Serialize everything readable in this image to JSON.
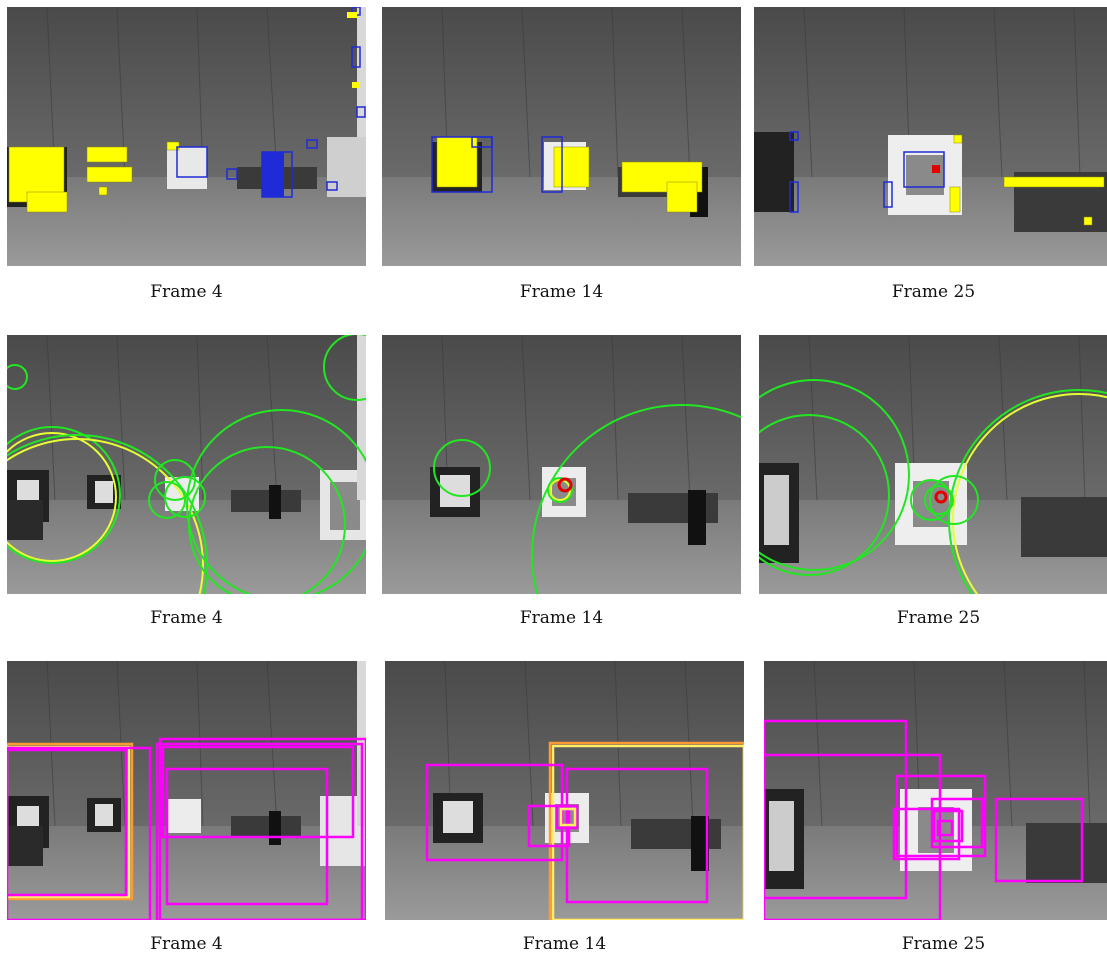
{
  "figure": {
    "captions": [
      [
        "Frame 4",
        "Frame 14",
        "Frame 25"
      ],
      [
        "Frame 4",
        "Frame 14",
        "Frame 25"
      ],
      [
        "Frame 4",
        "Frame 14",
        "Frame 25"
      ]
    ],
    "colors": {
      "feature_yellow": "#ffff00",
      "feature_blue": "#1f2bd6",
      "circle_green": "#22e622",
      "circle_yellow": "#e6ff33",
      "highlight_red": "#e00000",
      "box_magenta": "#ff00ff",
      "box_yellow": "#ffee66",
      "box_orange": "#ff9933"
    }
  }
}
